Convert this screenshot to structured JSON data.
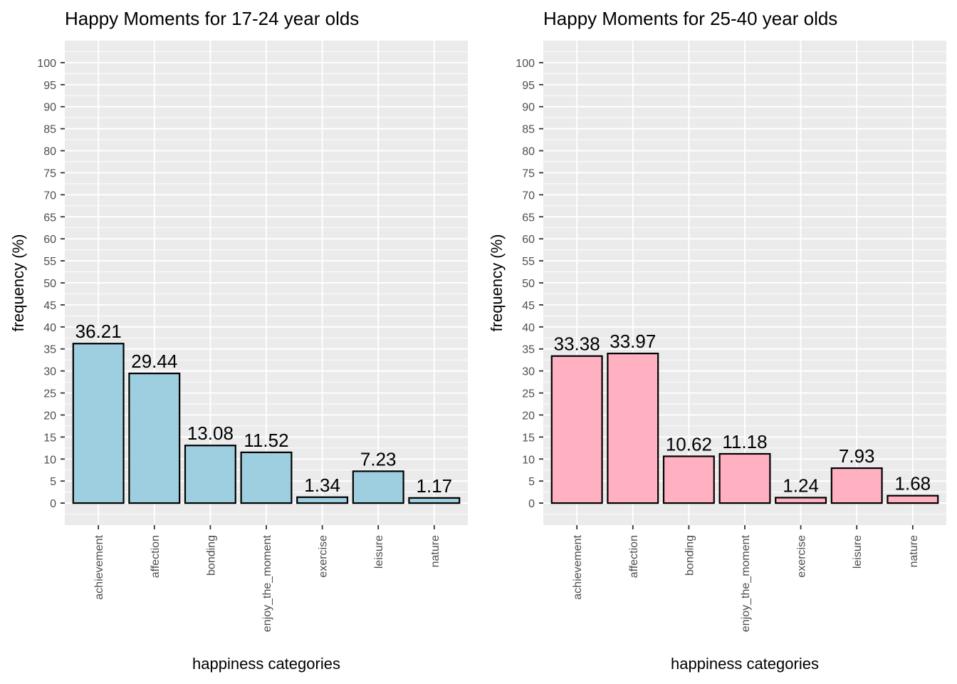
{
  "chart_data": [
    {
      "type": "bar",
      "title": "Happy Moments for 17-24 year olds",
      "xlabel": "happiness categories",
      "ylabel": "frequency (%)",
      "categories": [
        "achievement",
        "affection",
        "bonding",
        "enjoy_the_moment",
        "exercise",
        "leisure",
        "nature"
      ],
      "values": [
        36.21,
        29.44,
        13.08,
        11.52,
        1.34,
        7.23,
        1.17
      ],
      "data_labels": [
        "36.21",
        "29.44",
        "13.08",
        "11.52",
        "1.34",
        "7.23",
        "1.17"
      ],
      "yticks": [
        "0",
        "5",
        "10",
        "15",
        "20",
        "25",
        "30",
        "35",
        "40",
        "45",
        "50",
        "55",
        "60",
        "65",
        "70",
        "75",
        "80",
        "85",
        "90",
        "95",
        "100"
      ],
      "ylim": [
        -5,
        105
      ],
      "grid": true,
      "bar_color": "#9ecfe1",
      "edge_color": "#000000"
    },
    {
      "type": "bar",
      "title": "Happy Moments for 25-40 year olds",
      "xlabel": "happiness categories",
      "ylabel": "frequency (%)",
      "categories": [
        "achievement",
        "affection",
        "bonding",
        "enjoy_the_moment",
        "exercise",
        "leisure",
        "nature"
      ],
      "values": [
        33.38,
        33.97,
        10.62,
        11.18,
        1.24,
        7.93,
        1.68
      ],
      "data_labels": [
        "33.38",
        "33.97",
        "10.62",
        "11.18",
        "1.24",
        "7.93",
        "1.68"
      ],
      "yticks": [
        "0",
        "5",
        "10",
        "15",
        "20",
        "25",
        "30",
        "35",
        "40",
        "45",
        "50",
        "55",
        "60",
        "65",
        "70",
        "75",
        "80",
        "85",
        "90",
        "95",
        "100"
      ],
      "ylim": [
        -5,
        105
      ],
      "grid": true,
      "bar_color": "#ffb1c2",
      "edge_color": "#000000"
    }
  ]
}
